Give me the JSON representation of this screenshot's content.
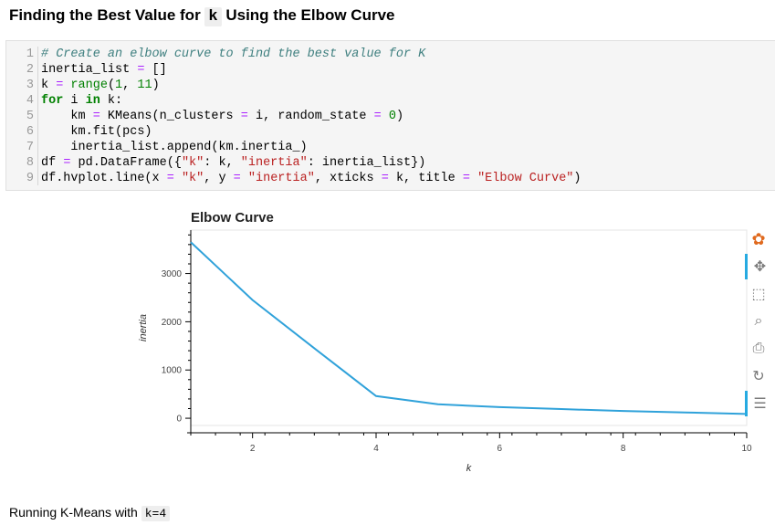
{
  "heading": {
    "before": "Finding the Best Value for ",
    "code": "k",
    "after": " Using the Elbow Curve"
  },
  "code_cell": {
    "line_numbers": [
      "1",
      "2",
      "3",
      "4",
      "5",
      "6",
      "7",
      "8",
      "9"
    ],
    "lines": [
      [
        {
          "t": "cm",
          "v": "# Create an elbow curve to find the best value for K"
        }
      ],
      [
        {
          "t": "",
          "v": "inertia_list "
        },
        {
          "t": "op",
          "v": "="
        },
        {
          "t": "",
          "v": " []"
        }
      ],
      [
        {
          "t": "",
          "v": "k "
        },
        {
          "t": "op",
          "v": "="
        },
        {
          "t": "",
          "v": " "
        },
        {
          "t": "bi",
          "v": "range"
        },
        {
          "t": "",
          "v": "("
        },
        {
          "t": "num",
          "v": "1"
        },
        {
          "t": "",
          "v": ", "
        },
        {
          "t": "num",
          "v": "11"
        },
        {
          "t": "",
          "v": ")"
        }
      ],
      [
        {
          "t": "kw",
          "v": "for"
        },
        {
          "t": "",
          "v": " i "
        },
        {
          "t": "kw",
          "v": "in"
        },
        {
          "t": "",
          "v": " k:"
        }
      ],
      [
        {
          "t": "",
          "v": "    km "
        },
        {
          "t": "op",
          "v": "="
        },
        {
          "t": "",
          "v": " KMeans(n_clusters "
        },
        {
          "t": "op",
          "v": "="
        },
        {
          "t": "",
          "v": " i, random_state "
        },
        {
          "t": "op",
          "v": "="
        },
        {
          "t": "",
          "v": " "
        },
        {
          "t": "num",
          "v": "0"
        },
        {
          "t": "",
          "v": ")"
        }
      ],
      [
        {
          "t": "",
          "v": "    km.fit(pcs)"
        }
      ],
      [
        {
          "t": "",
          "v": "    inertia_list.append(km.inertia_)"
        }
      ],
      [
        {
          "t": "",
          "v": "df "
        },
        {
          "t": "op",
          "v": "="
        },
        {
          "t": "",
          "v": " pd.DataFrame({"
        },
        {
          "t": "str",
          "v": "\"k\""
        },
        {
          "t": "",
          "v": ": k, "
        },
        {
          "t": "str",
          "v": "\"inertia\""
        },
        {
          "t": "",
          "v": ": inertia_list})"
        }
      ],
      [
        {
          "t": "",
          "v": "df.hvplot.line(x "
        },
        {
          "t": "op",
          "v": "="
        },
        {
          "t": "",
          "v": " "
        },
        {
          "t": "str",
          "v": "\"k\""
        },
        {
          "t": "",
          "v": ", y "
        },
        {
          "t": "op",
          "v": "="
        },
        {
          "t": "",
          "v": " "
        },
        {
          "t": "str",
          "v": "\"inertia\""
        },
        {
          "t": "",
          "v": ", xticks "
        },
        {
          "t": "op",
          "v": "="
        },
        {
          "t": "",
          "v": " k, title "
        },
        {
          "t": "op",
          "v": "="
        },
        {
          "t": "",
          "v": " "
        },
        {
          "t": "str",
          "v": "\"Elbow Curve\""
        },
        {
          "t": "",
          "v": ")"
        }
      ]
    ]
  },
  "chart_data": {
    "type": "line",
    "title": "Elbow Curve",
    "xlabel": "k",
    "ylabel": "inertia",
    "x": [
      1,
      2,
      3,
      4,
      5,
      6,
      7,
      8,
      9,
      10
    ],
    "series": [
      {
        "values": [
          3650,
          2450,
          1450,
          460,
          290,
          230,
          190,
          150,
          120,
          90
        ]
      }
    ],
    "xlim": [
      1,
      10
    ],
    "ylim": [
      -150,
      3900
    ],
    "xticks": [
      2,
      4,
      6,
      8,
      10
    ],
    "yticks": [
      0,
      1000,
      2000,
      3000
    ],
    "line_color": "#30a2da",
    "grid": false
  },
  "toolbar": {
    "items": [
      "bokeh-logo-icon",
      "pan-icon",
      "box-zoom-icon",
      "wheel-zoom-icon",
      "save-icon",
      "reset-icon",
      "hover-icon"
    ]
  },
  "markdown": {
    "text": "Running K-Means with ",
    "code": "k=4"
  }
}
